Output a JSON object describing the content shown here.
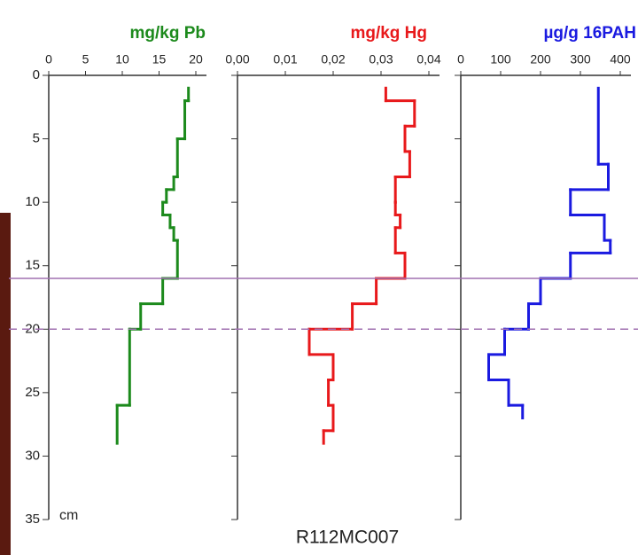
{
  "chart_data": [
    {
      "type": "step",
      "title": "mg/kg Pb",
      "color": "#1c8a1c",
      "xlim": [
        0,
        20
      ],
      "xticks": [
        0,
        5,
        10,
        15,
        20
      ],
      "ylim": [
        0,
        35
      ],
      "yticks": [
        0,
        5,
        10,
        15,
        20,
        25,
        30,
        35
      ],
      "show_ytick_labels": true,
      "ylabel": "cm",
      "depths": [
        1,
        2,
        5,
        8,
        9,
        10,
        11,
        12,
        13,
        16,
        18,
        20,
        26,
        29
      ],
      "values": [
        19,
        18.5,
        17.5,
        17,
        16,
        15.5,
        16.5,
        17,
        17.5,
        15.5,
        12.5,
        11,
        9.3
      ]
    },
    {
      "type": "step",
      "title": "mg/kg Hg",
      "color": "#e8191b",
      "xlim": [
        0,
        0.04
      ],
      "xticks": [
        {
          "value": 0,
          "label": "0,00"
        },
        {
          "value": 0.01,
          "label": "0,01"
        },
        {
          "value": 0.02,
          "label": "0,02"
        },
        {
          "value": 0.03,
          "label": "0,03"
        },
        {
          "value": 0.04,
          "label": "0,04"
        }
      ],
      "ylim": [
        0,
        35
      ],
      "yticks": [
        0,
        5,
        10,
        15,
        20,
        25,
        30,
        35
      ],
      "show_ytick_labels": false,
      "depths": [
        1,
        2,
        4,
        6,
        8,
        10,
        11,
        12,
        14,
        16,
        18,
        20,
        22,
        24,
        26,
        28,
        29
      ],
      "values": [
        0.031,
        0.037,
        0.035,
        0.036,
        0.033,
        0.033,
        0.034,
        0.033,
        0.035,
        0.029,
        0.024,
        0.015,
        0.02,
        0.019,
        0.02,
        0.018
      ]
    },
    {
      "type": "step",
      "title": "µg/g 16PAH",
      "color": "#1a1ae0",
      "xlim": [
        0,
        400
      ],
      "xticks": [
        0,
        100,
        200,
        300,
        400
      ],
      "ylim": [
        0,
        35
      ],
      "yticks": [
        0,
        5,
        10,
        15,
        20,
        25,
        30,
        35
      ],
      "show_ytick_labels": false,
      "depths": [
        1,
        7,
        9,
        11,
        13,
        14,
        16,
        18,
        20,
        22,
        24,
        26,
        27
      ],
      "values": [
        345,
        370,
        275,
        360,
        375,
        275,
        200,
        170,
        110,
        70,
        120,
        155
      ]
    }
  ],
  "depth_lines": [
    {
      "value": 16,
      "style": "solid"
    },
    {
      "value": 20,
      "style": "dashed"
    }
  ],
  "caption": "R112MC007"
}
